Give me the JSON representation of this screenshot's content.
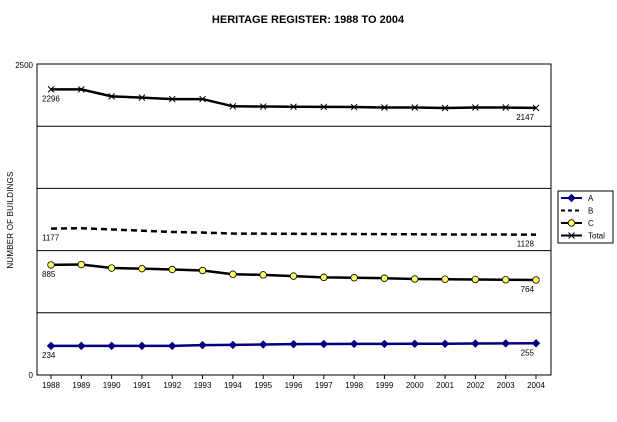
{
  "chart_data": {
    "type": "line",
    "title": "HERITAGE REGISTER: 1988 TO 2004",
    "xlabel": "",
    "ylabel": "NUMBER OF BUILDINGS",
    "ylim": [
      0,
      2500
    ],
    "y_ticks": [
      "0",
      "2500"
    ],
    "grid": "horizontal",
    "legend": "right",
    "x": [
      "1988",
      "1989",
      "1990",
      "1991",
      "1992",
      "1993",
      "1994",
      "1995",
      "1996",
      "1997",
      "1998",
      "1999",
      "2000",
      "2001",
      "2002",
      "2003",
      "2004"
    ],
    "series": [
      {
        "name": "A",
        "marker": "diamond",
        "color": "#000080",
        "dash": "solid",
        "values": [
          234,
          234,
          234,
          234,
          234,
          240,
          242,
          245,
          248,
          249,
          250,
          250,
          251,
          251,
          253,
          254,
          255
        ],
        "labels": {
          "start": "234",
          "end": "255"
        }
      },
      {
        "name": "B",
        "marker": "none",
        "color": "#000000",
        "dash": "dashed",
        "values": [
          1177,
          1180,
          1170,
          1160,
          1150,
          1145,
          1137,
          1136,
          1135,
          1134,
          1133,
          1132,
          1131,
          1130,
          1129,
          1129,
          1128
        ],
        "labels": {
          "start": "1177",
          "end": "1128"
        }
      },
      {
        "name": "C",
        "marker": "circle",
        "color": "#ffff66",
        "dash": "solid",
        "values": [
          885,
          888,
          860,
          855,
          848,
          840,
          810,
          805,
          795,
          785,
          782,
          778,
          772,
          770,
          768,
          766,
          764
        ],
        "labels": {
          "start": "885",
          "end": "764"
        }
      },
      {
        "name": "Total",
        "marker": "x",
        "color": "#000000",
        "dash": "solid",
        "values": [
          2296,
          2296,
          2240,
          2230,
          2218,
          2218,
          2160,
          2158,
          2156,
          2155,
          2154,
          2150,
          2150,
          2146,
          2150,
          2150,
          2147
        ],
        "labels": {
          "start": "2296",
          "end": "2147"
        }
      }
    ]
  }
}
